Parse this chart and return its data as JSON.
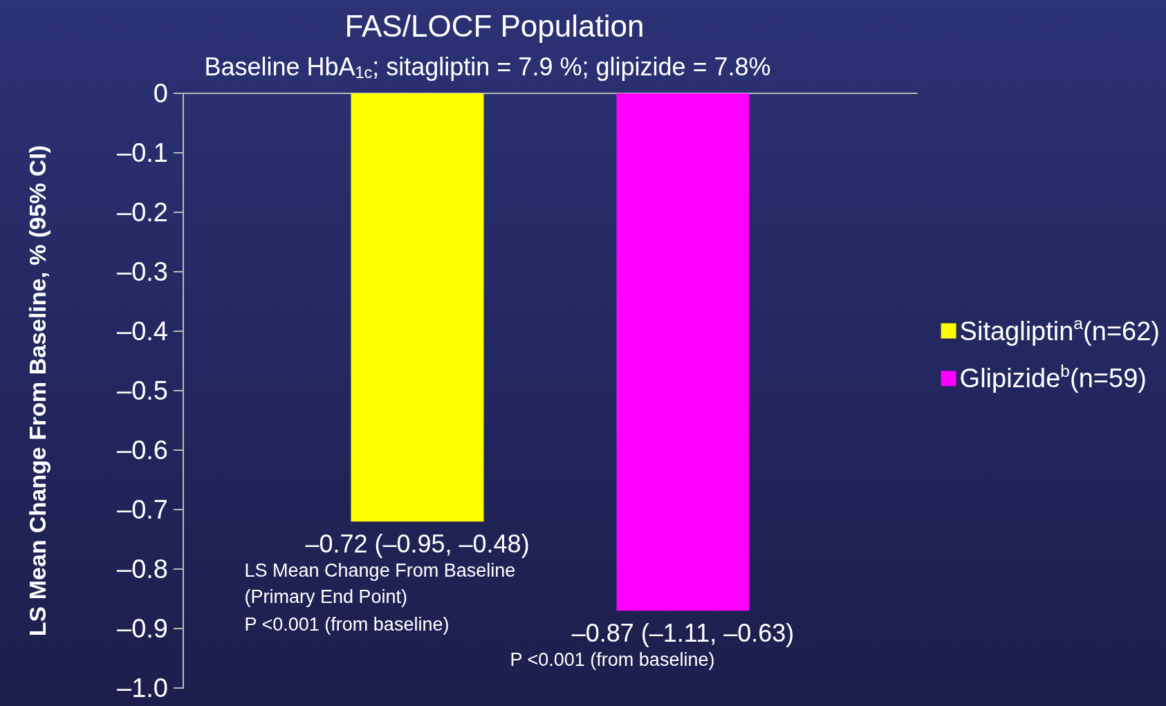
{
  "chart_data": {
    "type": "bar",
    "title": "FAS/LOCF Population",
    "subtitle": "Baseline HbA$_{1c}$; sitagliptin = 7.9 %; glipizide = 7.8%",
    "ylabel": "LS Mean Change From Baseline, % (95% CI)",
    "categories": [
      null
    ],
    "series": [
      {
        "name": "Sitagliptin$^{a}$(n=62)",
        "color": "#ffff00",
        "values": [
          -0.72
        ],
        "value_labels": [
          "–0.72 (–0.95, –0.48)"
        ]
      },
      {
        "name": "Glipizide$^{b}$(n=59)",
        "color": "#ff00ff",
        "values": [
          -0.87
        ],
        "value_labels": [
          "–0.87 (–1.11, –0.63)"
        ]
      }
    ],
    "ylim": [
      -1,
      0
    ],
    "yticks": [
      {
        "value": 0,
        "label": "0"
      },
      {
        "value": -0.1,
        "label": "–0.1"
      },
      {
        "value": -0.2,
        "label": "–0.2"
      },
      {
        "value": -0.3,
        "label": "–0.3"
      },
      {
        "value": -0.4,
        "label": "–0.4"
      },
      {
        "value": -0.5,
        "label": "–0.5"
      },
      {
        "value": -0.6,
        "label": "–0.6"
      },
      {
        "value": -0.7,
        "label": "–0.7"
      },
      {
        "value": -0.8,
        "label": "–0.8"
      },
      {
        "value": -0.9,
        "label": "–0.9"
      },
      {
        "value": -1,
        "label": "–1.0"
      }
    ],
    "annotations": [
      "LS Mean Change From Baseline (Primary End Point)",
      "P <0.001 (from baseline)",
      "P <0.001 (from baseline)"
    ],
    "grid": false,
    "legend": "right"
  }
}
